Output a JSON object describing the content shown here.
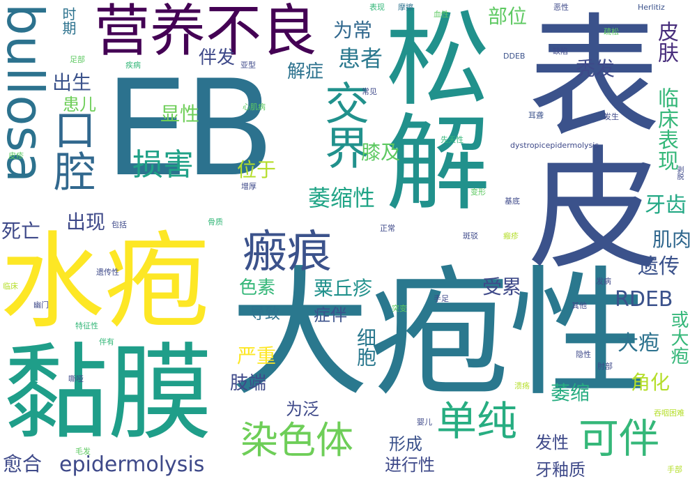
{
  "palette": {
    "purple": "#440154",
    "indigo": "#3b528b",
    "blue": "#31688e",
    "teal": "#21918c",
    "green": "#35b779",
    "lime": "#5ec962",
    "yellow": "#fde725"
  },
  "words": [
    {
      "text": "EB"
    },
    {
      "text": "大疱性"
    },
    {
      "text": "表皮"
    },
    {
      "text": "松解"
    },
    {
      "text": "水疱"
    },
    {
      "text": "黏膜"
    },
    {
      "text": "营养不良"
    },
    {
      "text": "bullosa"
    },
    {
      "text": "交界"
    },
    {
      "text": "瘢痕"
    },
    {
      "text": "口腔"
    },
    {
      "text": "单纯"
    },
    {
      "text": "染色体"
    },
    {
      "text": "可伴"
    },
    {
      "text": "损害"
    },
    {
      "text": "epidermolysis"
    },
    {
      "text": "患者"
    },
    {
      "text": "萎缩性"
    },
    {
      "text": "为常"
    },
    {
      "text": "部位"
    },
    {
      "text": "秃发"
    },
    {
      "text": "皮肤"
    },
    {
      "text": "临床表现"
    },
    {
      "text": "伴发"
    },
    {
      "text": "解症"
    },
    {
      "text": "出生"
    },
    {
      "text": "患儿"
    },
    {
      "text": "显性"
    },
    {
      "text": "位于"
    },
    {
      "text": "膝及"
    },
    {
      "text": "牙齿"
    },
    {
      "text": "肌肉"
    },
    {
      "text": "遗传"
    },
    {
      "text": "死亡"
    },
    {
      "text": "出现"
    },
    {
      "text": "色素"
    },
    {
      "text": "粟丘疹"
    },
    {
      "text": "受累"
    },
    {
      "text": "RDEB"
    },
    {
      "text": "导致"
    },
    {
      "text": "症伴"
    },
    {
      "text": "大疱"
    },
    {
      "text": "或大疱"
    },
    {
      "text": "严重"
    },
    {
      "text": "细胞"
    },
    {
      "text": "角化"
    },
    {
      "text": "肢端"
    },
    {
      "text": "萎缩"
    },
    {
      "text": "为泛"
    },
    {
      "text": "形成"
    },
    {
      "text": "发性"
    },
    {
      "text": "愈合"
    },
    {
      "text": "进行性"
    },
    {
      "text": "牙釉质"
    },
    {
      "text": "时期"
    },
    {
      "text": "表现"
    },
    {
      "text": "摩擦"
    },
    {
      "text": "血性"
    },
    {
      "text": "恶性"
    },
    {
      "text": "Herlitiz"
    },
    {
      "text": "疏松"
    },
    {
      "text": "足部"
    },
    {
      "text": "疾病"
    },
    {
      "text": "亚型"
    },
    {
      "text": "DDEB"
    },
    {
      "text": "缺陷"
    },
    {
      "text": "常见"
    },
    {
      "text": "心肌病"
    },
    {
      "text": "耳聋"
    },
    {
      "text": "发生"
    },
    {
      "text": "先天性"
    },
    {
      "text": "dystropicepidermolysis"
    },
    {
      "text": "皮疹"
    },
    {
      "text": "剥脱"
    },
    {
      "text": "增厚"
    },
    {
      "text": "变形"
    },
    {
      "text": "基底"
    },
    {
      "text": "包括"
    },
    {
      "text": "骨质"
    },
    {
      "text": "正常"
    },
    {
      "text": "斑驳"
    },
    {
      "text": "瘢疹"
    },
    {
      "text": "遗传性"
    },
    {
      "text": "发病"
    },
    {
      "text": "临床"
    },
    {
      "text": "幽门"
    },
    {
      "text": "手足"
    },
    {
      "text": "突变"
    },
    {
      "text": "其他"
    },
    {
      "text": "特征性"
    },
    {
      "text": "伴有"
    },
    {
      "text": "隐性"
    },
    {
      "text": "肘部"
    },
    {
      "text": "嘶哑"
    },
    {
      "text": "溃疡"
    },
    {
      "text": "吞咽困难"
    },
    {
      "text": "婴儿"
    },
    {
      "text": "毛发"
    },
    {
      "text": "手部"
    }
  ]
}
